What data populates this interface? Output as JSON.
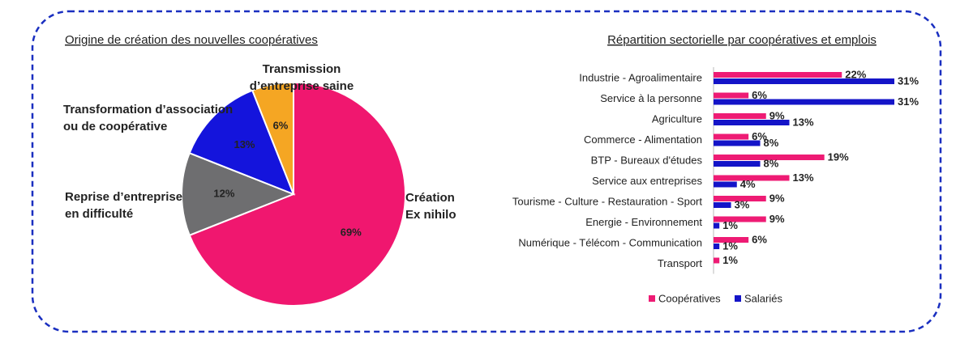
{
  "chart_data": [
    {
      "type": "pie",
      "title": "Origine de création des nouvelles coopératives",
      "categories": [
        [
          "Création",
          "Ex nihilo"
        ],
        [
          "Reprise d’entreprise",
          "en difficulté"
        ],
        [
          "Transformation d’association",
          "ou de coopérative"
        ],
        [
          "Transmission",
          "d’entreprise saine"
        ]
      ],
      "values": [
        69,
        12,
        13,
        6
      ],
      "value_labels": [
        "69%",
        "12%",
        "13%",
        "6%"
      ],
      "colors": [
        "#f0176f",
        "#6e6e70",
        "#1414dc",
        "#f5a623"
      ]
    },
    {
      "type": "hbar",
      "title": "Répartition sectorielle par coopératives et emplois",
      "categories": [
        "Industrie - Agroalimentaire",
        "Service à la personne",
        "Agriculture",
        "Commerce - Alimentation",
        "BTP - Bureaux d'études",
        "Service aux entreprises",
        "Tourisme - Culture - Restauration - Sport",
        "Energie - Environnement",
        "Numérique - Télécom - Communication",
        "Transport"
      ],
      "series": [
        {
          "name": "Coopératives",
          "color": "#ee1b74",
          "values": [
            22,
            6,
            9,
            6,
            19,
            13,
            9,
            9,
            6,
            1
          ],
          "value_labels": [
            "22%",
            "6%",
            "9%",
            "6%",
            "19%",
            "13%",
            "9%",
            "9%",
            "6%",
            "1%"
          ]
        },
        {
          "name": "Salariés",
          "color": "#1414c8",
          "values": [
            31,
            31,
            13,
            8,
            8,
            4,
            3,
            1,
            1,
            null
          ],
          "value_labels": [
            "31%",
            "31%",
            "13%",
            "8%",
            "8%",
            "4%",
            "3%",
            "1%",
            "1%",
            null
          ]
        }
      ],
      "legend": "bottom"
    }
  ]
}
